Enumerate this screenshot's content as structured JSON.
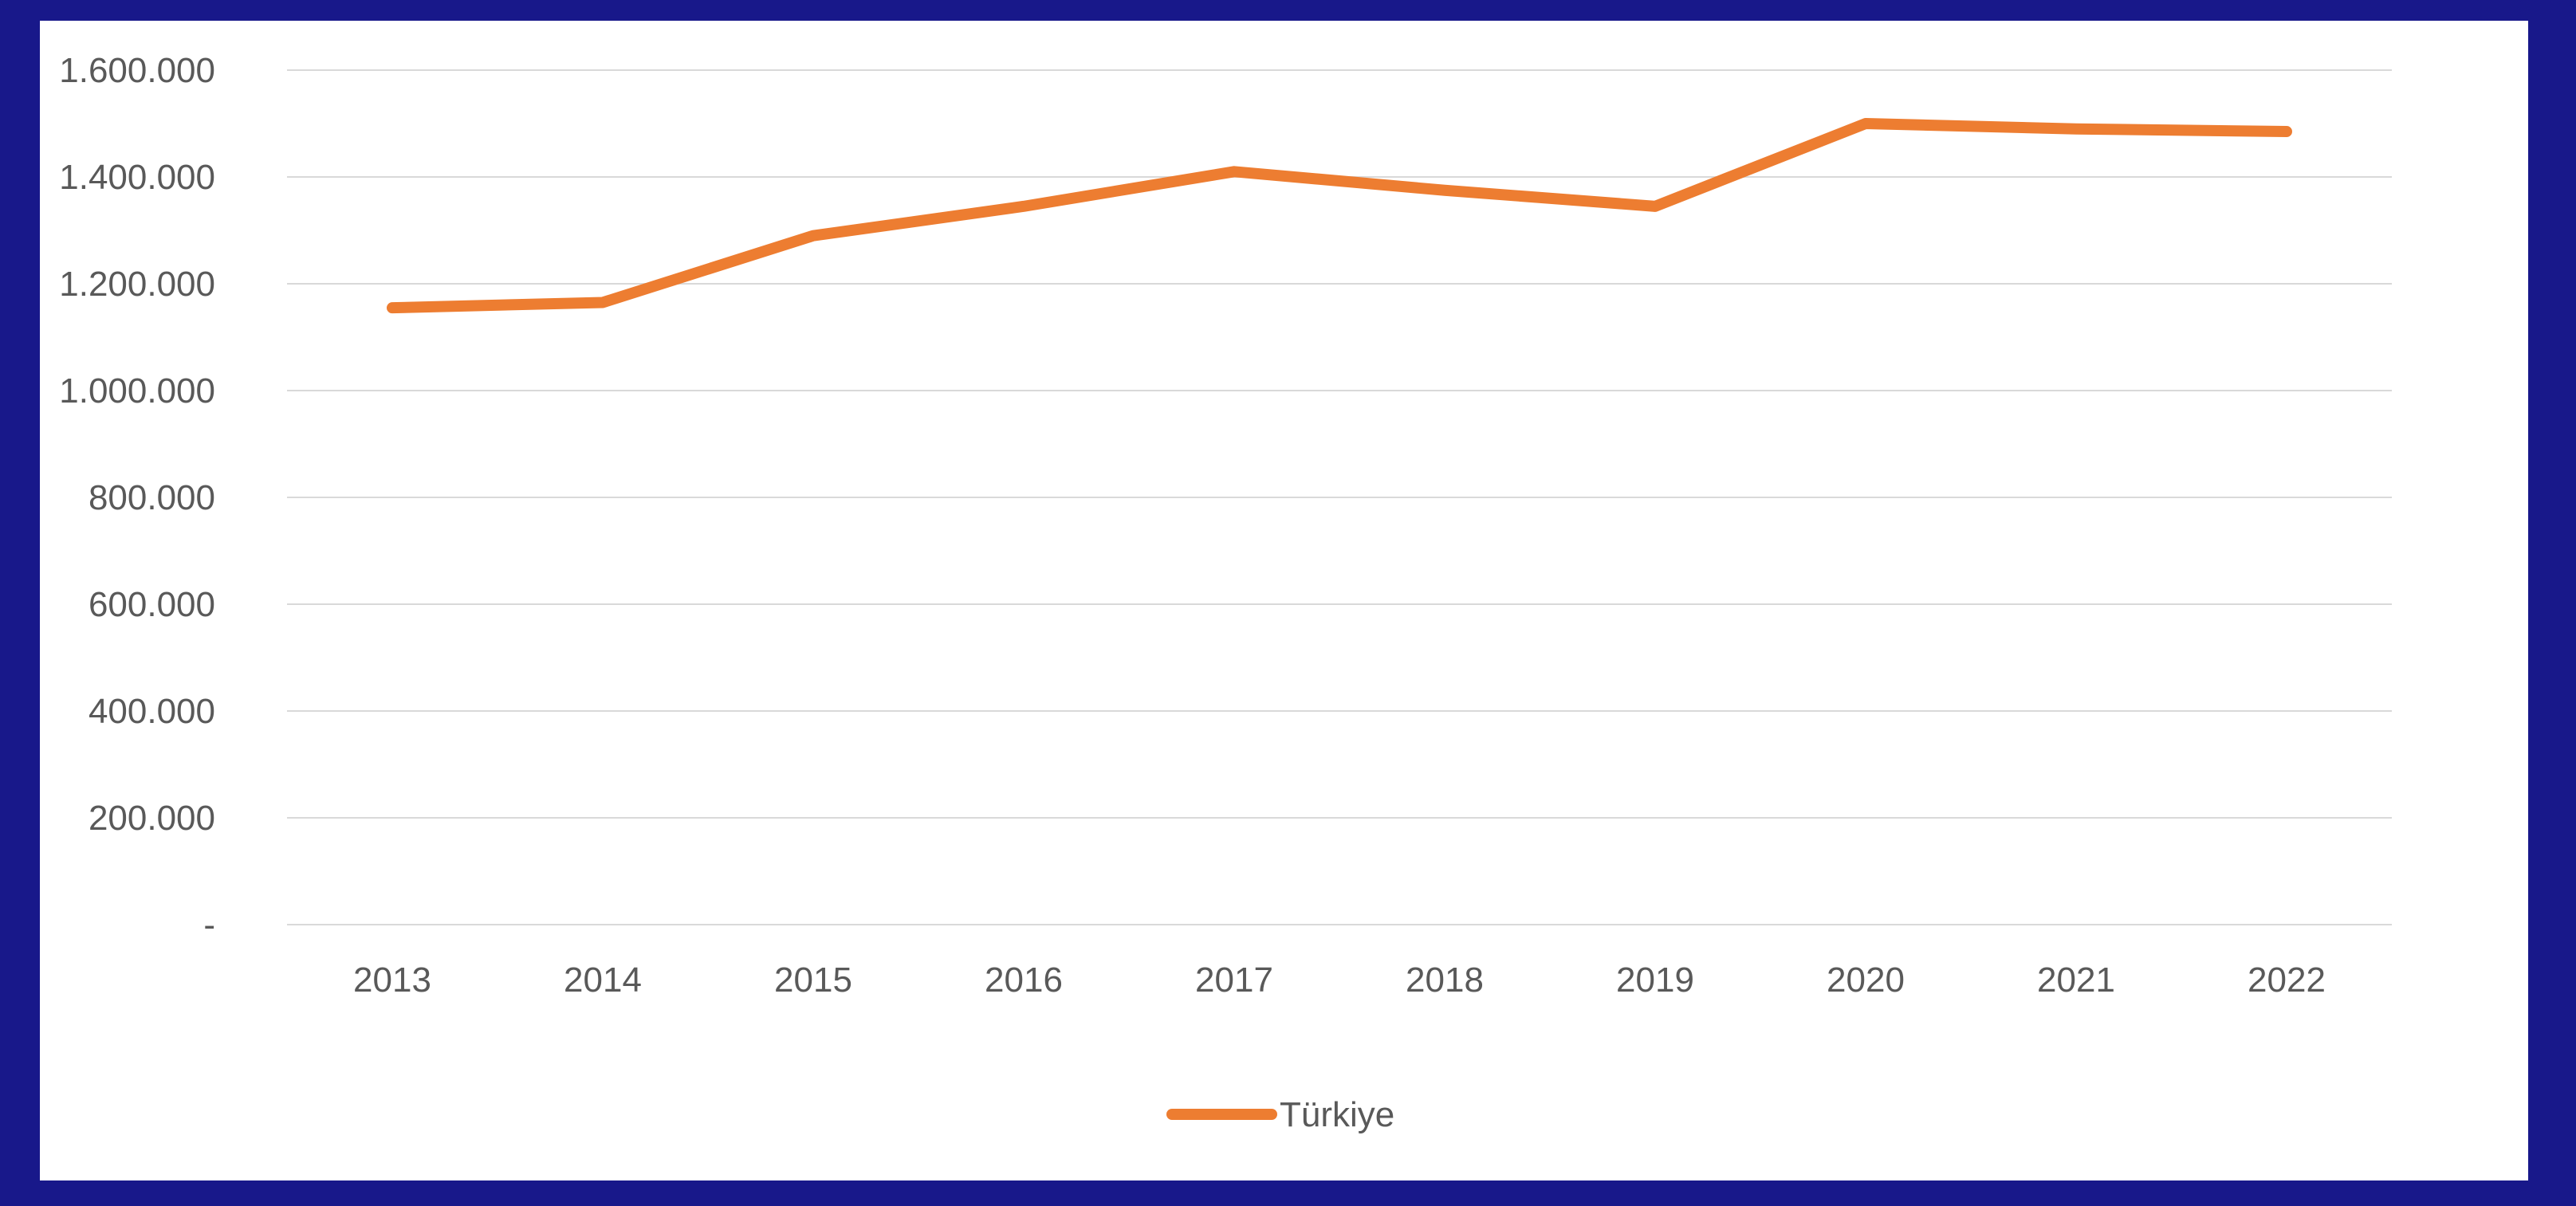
{
  "chart_data": {
    "type": "line",
    "title": "",
    "xlabel": "",
    "ylabel": "",
    "categories": [
      "2013",
      "2014",
      "2015",
      "2016",
      "2017",
      "2018",
      "2019",
      "2020",
      "2021",
      "2022"
    ],
    "series": [
      {
        "name": "Türkiye",
        "color": "#ed7d31",
        "values": [
          1155000,
          1165000,
          1290000,
          1345000,
          1410000,
          1375000,
          1345000,
          1500000,
          1490000,
          1485000
        ]
      }
    ],
    "ylim": [
      0,
      1600000
    ],
    "yticks": [
      0,
      200000,
      400000,
      600000,
      800000,
      1000000,
      1200000,
      1400000,
      1600000
    ],
    "ytick_labels": [
      "-",
      "200.000",
      "400.000",
      "600.000",
      "800.000",
      "1.000.000",
      "1.200.000",
      "1.400.000",
      "1.600.000"
    ],
    "grid": true,
    "legend_position": "bottom-center",
    "frame_color": "#18188a"
  }
}
